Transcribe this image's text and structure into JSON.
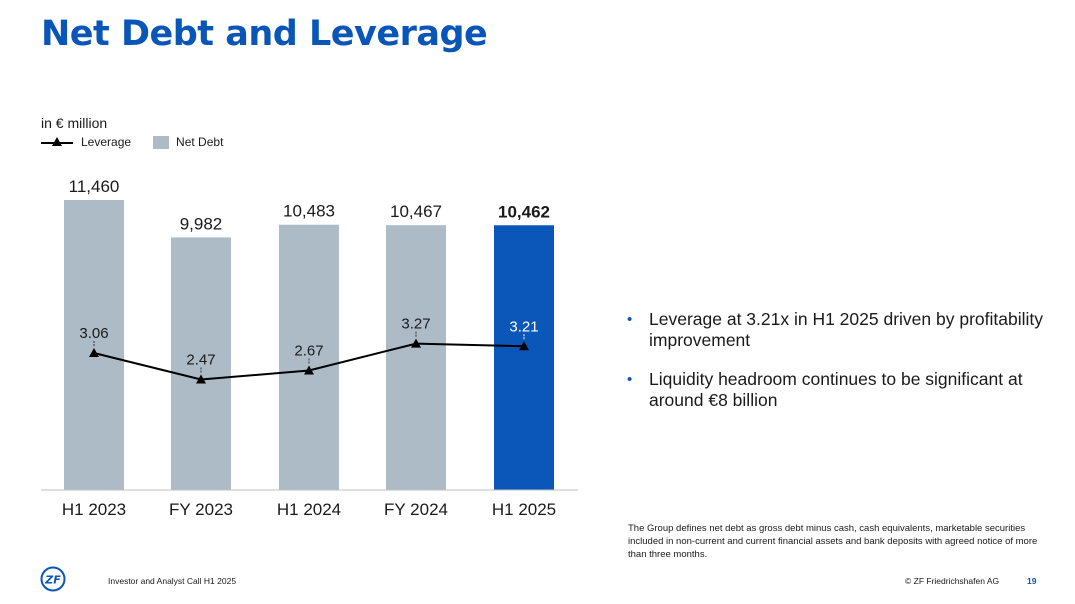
{
  "title": "Net Debt and Leverage",
  "unit_label": "in € million",
  "legend": {
    "leverage_label": "Leverage",
    "netdebt_label": "Net Debt"
  },
  "colors": {
    "accent": "#0a56b8",
    "bar_gray": "#adbbc7",
    "bar_highlight": "#0b57b9",
    "line": "#000000"
  },
  "chart_data": {
    "type": "bar",
    "title": "Net Debt and Leverage",
    "ylabel": "in € million",
    "categories": [
      "H1 2023",
      "FY 2023",
      "H1 2024",
      "FY 2024",
      "H1 2025"
    ],
    "series": [
      {
        "name": "Net Debt",
        "type": "bar",
        "values": [
          11460,
          9982,
          10483,
          10467,
          10462
        ],
        "labels": [
          "11,460",
          "9,982",
          "10,483",
          "10,467",
          "10,462"
        ],
        "highlight_index": 4
      },
      {
        "name": "Leverage",
        "type": "line",
        "marker": "triangle",
        "values": [
          3.06,
          2.47,
          2.67,
          3.27,
          3.21
        ],
        "labels": [
          "3.06",
          "2.47",
          "2.67",
          "3.27",
          "3.21"
        ]
      }
    ]
  },
  "bullets": [
    "Leverage at 3.21x in H1 2025 driven by profitability improvement",
    "Liquidity headroom continues to be significant at around €8 billion"
  ],
  "footnote": "The Group defines net debt as gross debt minus cash, cash equivalents, marketable securities included in non-current and current financial assets and bank deposits with agreed notice of more than three months.",
  "footer": {
    "logo_text": "ZF",
    "event": "Investor and Analyst Call H1 2025",
    "copyright": "© ZF Friedrichshafen AG",
    "page_number": "19"
  }
}
